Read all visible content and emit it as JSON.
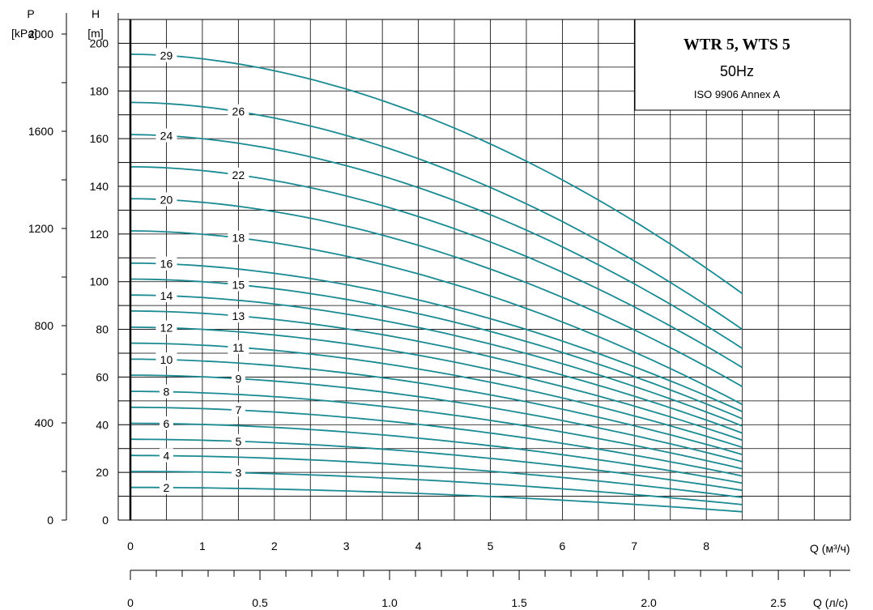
{
  "legend_box": {
    "title": "WTR 5, WTS 5",
    "frequency": "50Hz",
    "standard": "ISO 9906 Annex A"
  },
  "chart_data": {
    "type": "line",
    "title": "WTR 5, WTS 5",
    "subtitle": "50Hz",
    "annotation": "ISO 9906 Annex A",
    "x_axis": {
      "label": "Q (м³/ч)",
      "range": [
        0,
        10
      ],
      "ticks": [
        0,
        1,
        2,
        3,
        4,
        5,
        6,
        7,
        8
      ],
      "grid_step": 0.5
    },
    "x2_axis": {
      "label": "Q (л/с)",
      "ticks": [
        "0",
        "0.5",
        "1.0",
        "1.5",
        "2.0",
        "2.5"
      ],
      "tick_values": [
        0,
        0.5,
        1.0,
        1.5,
        2.0,
        2.5
      ],
      "minor_step": 0.1
    },
    "y_axis": {
      "label_name": "H",
      "label_unit": "[m]",
      "range": [
        0,
        210
      ],
      "ticks": [
        0,
        20,
        40,
        60,
        80,
        100,
        120,
        140,
        160,
        180,
        200
      ],
      "grid_step": 10
    },
    "y2_axis": {
      "label_name": "P",
      "label_unit": "[kPa]",
      "ticks": [
        0,
        400,
        800,
        1200,
        1600,
        2000
      ],
      "minor_step": 200
    },
    "grid": true,
    "q_max": 8.5,
    "series": [
      {
        "name": "2",
        "H0": 13.7,
        "H_end": 3.5,
        "label_x": 0.5
      },
      {
        "name": "3",
        "H0": 20.4,
        "H_end": 6.5,
        "label_x": 1.5
      },
      {
        "name": "4",
        "H0": 27.1,
        "H_end": 9.5,
        "label_x": 0.5
      },
      {
        "name": "5",
        "H0": 33.9,
        "H_end": 12.5,
        "label_x": 1.5
      },
      {
        "name": "6",
        "H0": 40.6,
        "H_end": 15.5,
        "label_x": 0.5
      },
      {
        "name": "7",
        "H0": 47.3,
        "H_end": 18.5,
        "label_x": 1.5
      },
      {
        "name": "8",
        "H0": 54.0,
        "H_end": 21.5,
        "label_x": 0.5
      },
      {
        "name": "9",
        "H0": 60.8,
        "H_end": 24.5,
        "label_x": 1.5
      },
      {
        "name": "10",
        "H0": 67.5,
        "H_end": 27.5,
        "label_x": 0.5
      },
      {
        "name": "11",
        "H0": 74.2,
        "H_end": 30.5,
        "label_x": 1.5
      },
      {
        "name": "12",
        "H0": 80.9,
        "H_end": 33.5,
        "label_x": 0.5
      },
      {
        "name": "13",
        "H0": 87.7,
        "H_end": 36.5,
        "label_x": 1.5
      },
      {
        "name": "14",
        "H0": 94.4,
        "H_end": 39.5,
        "label_x": 0.5
      },
      {
        "name": "15",
        "H0": 101.1,
        "H_end": 42.5,
        "label_x": 1.5
      },
      {
        "name": "16",
        "H0": 107.8,
        "H_end": 45.5,
        "label_x": 0.5
      },
      {
        "name": "18",
        "H0": 121.3,
        "H_end": 48.5,
        "label_x": 1.5
      },
      {
        "name": "20",
        "H0": 134.8,
        "H_end": 56.0,
        "label_x": 0.5
      },
      {
        "name": "22",
        "H0": 148.2,
        "H_end": 64.0,
        "label_x": 1.5
      },
      {
        "name": "24",
        "H0": 161.7,
        "H_end": 72.0,
        "label_x": 0.5
      },
      {
        "name": "26",
        "H0": 175.2,
        "H_end": 80.0,
        "label_x": 1.5
      },
      {
        "name": "29",
        "H0": 195.4,
        "H_end": 95.0,
        "label_x": 0.5
      }
    ],
    "colors": {
      "curve": "#1b8a92",
      "grid": "#000000",
      "axis": "#000000"
    }
  }
}
